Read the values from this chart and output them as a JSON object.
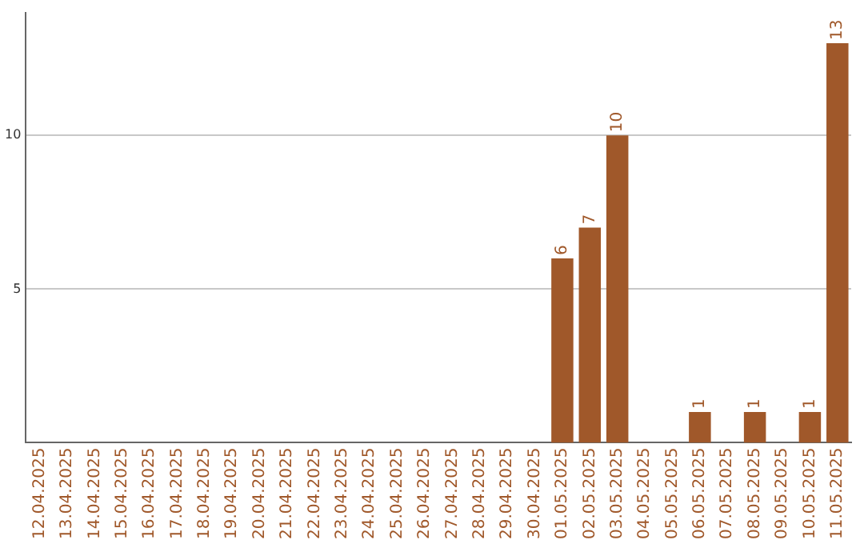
{
  "chart_data": {
    "type": "bar",
    "categories": [
      "12.04.2025",
      "13.04.2025",
      "14.04.2025",
      "15.04.2025",
      "16.04.2025",
      "17.04.2025",
      "18.04.2025",
      "19.04.2025",
      "20.04.2025",
      "21.04.2025",
      "22.04.2025",
      "23.04.2025",
      "24.04.2025",
      "25.04.2025",
      "26.04.2025",
      "27.04.2025",
      "28.04.2025",
      "29.04.2025",
      "30.04.2025",
      "01.05.2025",
      "02.05.2025",
      "03.05.2025",
      "04.05.2025",
      "05.05.2025",
      "06.05.2025",
      "07.05.2025",
      "08.05.2025",
      "09.05.2025",
      "10.05.2025",
      "11.05.2025"
    ],
    "values": [
      0,
      0,
      0,
      0,
      0,
      0,
      0,
      0,
      0,
      0,
      0,
      0,
      0,
      0,
      0,
      0,
      0,
      0,
      0,
      6,
      7,
      10,
      0,
      0,
      1,
      0,
      1,
      0,
      1,
      13
    ],
    "value_labels": [
      null,
      null,
      null,
      null,
      null,
      null,
      null,
      null,
      null,
      null,
      null,
      null,
      null,
      null,
      null,
      null,
      null,
      null,
      null,
      "6",
      "7",
      "10",
      null,
      null,
      "1",
      null,
      "1",
      null,
      "1",
      "13"
    ],
    "color": "#a0582a",
    "ylim": [
      0,
      14
    ],
    "yticks": [
      5,
      10
    ],
    "grid": "y",
    "legend": false
  }
}
